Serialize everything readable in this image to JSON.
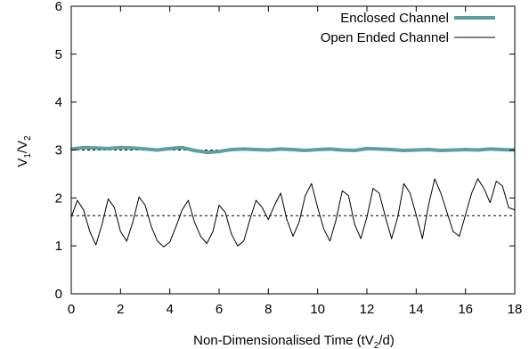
{
  "chart_data": {
    "type": "line",
    "xlabel": "Non-Dimensionalised Time (tV",
    "xlabel_sub": "2",
    "xlabel_close": "/d)",
    "ylabel": "V",
    "ylabel_sub": "1",
    "ylabel_mid": "/V",
    "ylabel_sub2": "2",
    "xlim": [
      0,
      18
    ],
    "ylim": [
      0,
      6
    ],
    "x_ticks": [
      0,
      2,
      4,
      6,
      8,
      10,
      12,
      14,
      16,
      18
    ],
    "y_ticks": [
      0,
      1,
      2,
      3,
      4,
      5,
      6
    ],
    "legend_position": "top-right",
    "grid": false,
    "series": [
      {
        "name": "Enclosed Channel",
        "color": "#5f9ea0",
        "style": "thick",
        "x": [
          0,
          0.5,
          1.0,
          1.5,
          2.0,
          2.5,
          3.0,
          3.5,
          4.0,
          4.5,
          5.0,
          5.5,
          6.0,
          6.5,
          7.0,
          7.5,
          8.0,
          8.5,
          9.0,
          9.5,
          10.0,
          10.5,
          11.0,
          11.5,
          12.0,
          12.5,
          13.0,
          13.5,
          14.0,
          14.5,
          15.0,
          15.5,
          16.0,
          16.5,
          17.0,
          17.5,
          18.0
        ],
        "y": [
          3.02,
          3.05,
          3.04,
          3.03,
          3.05,
          3.04,
          3.02,
          3.0,
          3.03,
          3.05,
          2.99,
          2.95,
          2.97,
          3.01,
          3.02,
          3.01,
          3.0,
          3.02,
          3.01,
          2.99,
          3.01,
          3.02,
          3.0,
          2.99,
          3.03,
          3.02,
          3.01,
          2.99,
          3.0,
          3.01,
          2.99,
          3.0,
          3.01,
          3.0,
          3.02,
          3.01,
          3.0
        ]
      },
      {
        "name": "Open Ended Channel",
        "color": "#000000",
        "style": "thin",
        "x": [
          0,
          0.25,
          0.5,
          0.75,
          1.0,
          1.25,
          1.5,
          1.75,
          2.0,
          2.25,
          2.5,
          2.75,
          3.0,
          3.25,
          3.5,
          3.75,
          4.0,
          4.25,
          4.5,
          4.75,
          5.0,
          5.25,
          5.5,
          5.75,
          6.0,
          6.25,
          6.5,
          6.75,
          7.0,
          7.25,
          7.5,
          7.75,
          8.0,
          8.25,
          8.5,
          8.75,
          9.0,
          9.25,
          9.5,
          9.75,
          10.0,
          10.25,
          10.5,
          10.75,
          11.0,
          11.25,
          11.5,
          11.75,
          12.0,
          12.25,
          12.5,
          12.75,
          13.0,
          13.25,
          13.5,
          13.75,
          14.0,
          14.25,
          14.5,
          14.75,
          15.0,
          15.25,
          15.5,
          15.75,
          16.0,
          16.25,
          16.5,
          16.75,
          17.0,
          17.25,
          17.5,
          17.75,
          18.0
        ],
        "y": [
          1.6,
          1.95,
          1.75,
          1.3,
          1.02,
          1.45,
          1.98,
          1.8,
          1.3,
          1.1,
          1.5,
          2.02,
          1.85,
          1.4,
          1.1,
          0.98,
          1.08,
          1.4,
          1.75,
          1.95,
          1.5,
          1.2,
          1.05,
          1.3,
          1.85,
          1.7,
          1.25,
          1.0,
          1.1,
          1.55,
          1.95,
          1.8,
          1.55,
          1.85,
          2.1,
          1.55,
          1.2,
          1.5,
          2.05,
          2.3,
          1.8,
          1.35,
          1.1,
          1.55,
          2.15,
          2.05,
          1.45,
          1.15,
          1.6,
          2.2,
          2.1,
          1.6,
          1.15,
          1.6,
          2.3,
          2.1,
          1.65,
          1.15,
          1.85,
          2.4,
          2.1,
          1.7,
          1.3,
          1.2,
          1.65,
          2.1,
          2.4,
          2.2,
          1.9,
          2.35,
          2.25,
          1.8,
          1.75
        ]
      }
    ],
    "reference_lines": [
      {
        "y": 1.63,
        "style": "dashed",
        "color": "#000000"
      },
      {
        "y": 3.0,
        "style": "dashed",
        "color": "#000000"
      }
    ]
  }
}
